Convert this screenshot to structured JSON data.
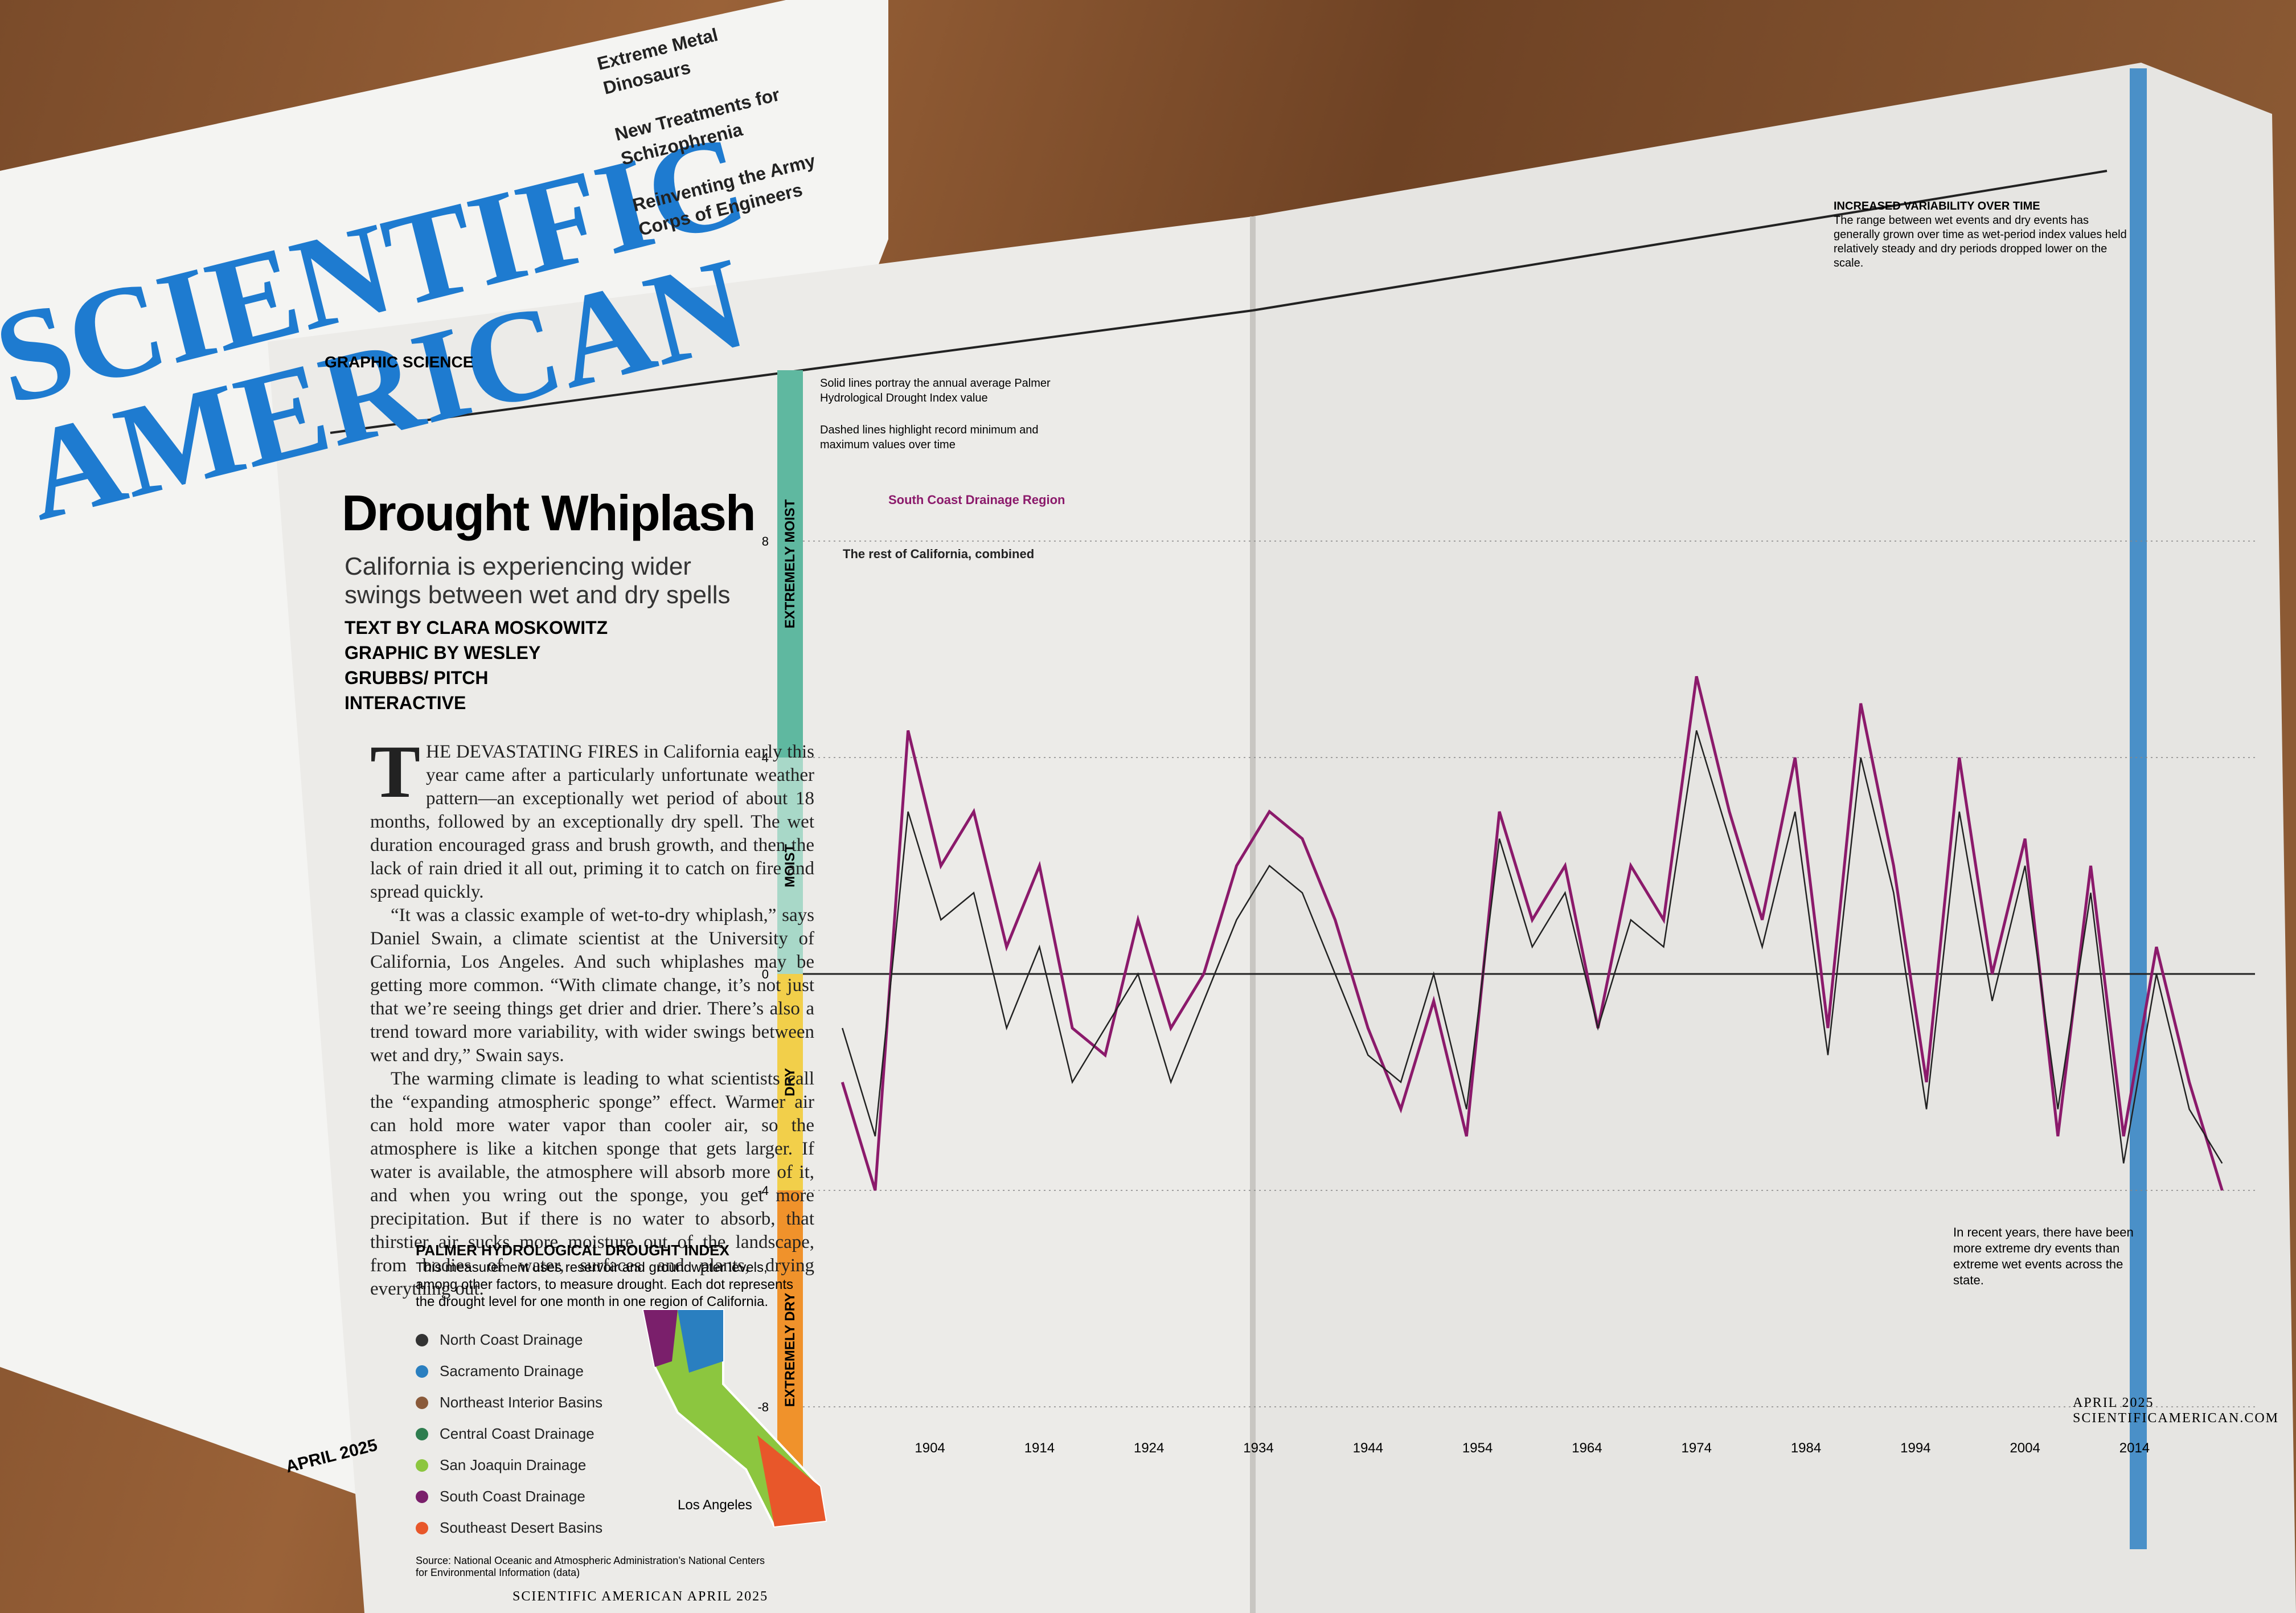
{
  "cover": {
    "masthead": [
      "SCIENTIFIC",
      "AMERICAN"
    ],
    "coverlines": [
      "Extreme Metal Dinosaurs",
      "New Treatments for Schizophrenia",
      "Reinventing the Army Corps of Engineers"
    ],
    "dateline": "APRIL 2025"
  },
  "article": {
    "section": "GRAPHIC SCIENCE",
    "title": "Drought Whiplash",
    "dek": "California is experiencing wider swings between wet and dry spells",
    "byline": [
      "TEXT BY CLARA MOSKOWITZ",
      "GRAPHIC BY WESLEY GRUBBS/ PITCH INTERACTIVE"
    ],
    "body": [
      "THE DEVASTATING FIRES in California early this year came after a particularly unfortunate weather pattern—an exceptionally wet period of about 18 months, followed by an exceptionally dry spell. The wet duration encouraged grass and brush growth, and then the lack of rain dried it all out, priming it to catch on fire and spread quickly.",
      "“It was a classic example of wet-to-dry whiplash,” says Daniel Swain, a climate scientist at the University of California, Los Angeles. And such whiplashes may be getting more common. “With climate change, it’s not just that we’re seeing things get drier and drier. There’s also a trend toward more variability, with wider swings between wet and dry,” Swain says.",
      "The warming climate is leading to what scientists call the “expanding atmospheric sponge” effect. Warmer air can hold more water vapor than cooler air, so the atmosphere is like a kitchen sponge that gets larger. If water is available, the atmosphere will absorb more of it, and when you wring out the sponge, you get more precipitation. But if there is no water to absorb, that thirstier air sucks more moisture out of the landscape, from bodies of water, surfaces and plants, drying everything out."
    ]
  },
  "legend": {
    "title": "PALMER HYDROLOGICAL DROUGHT INDEX",
    "description": "This measurement uses reservoir and groundwater levels, among other factors, to measure drought. Each dot represents the drought level for one month in one region of California.",
    "items": [
      {
        "name": "North Coast Drainage",
        "color": "#333333"
      },
      {
        "name": "Sacramento Drainage",
        "color": "#2a7fc0"
      },
      {
        "name": "Northeast Interior Basins",
        "color": "#8a5a3a"
      },
      {
        "name": "Central Coast Drainage",
        "color": "#2e7d4f"
      },
      {
        "name": "San Joaquin Drainage",
        "color": "#8cc63f"
      },
      {
        "name": "South Coast Drainage",
        "color": "#7a1f6b"
      },
      {
        "name": "Southeast Desert Basins",
        "color": "#e8572a"
      }
    ],
    "map_label": "Los Angeles",
    "source": "Source: National Oceanic and Atmospheric Administration’s National Centers for Environmental Information (data)"
  },
  "graphic": {
    "notes": [
      "Solid lines portray the annual average Palmer Hydrological Drought Index value",
      "Dashed lines highlight record minimum and maximum values over time"
    ],
    "zones": [
      "EXTREMELY MOIST",
      "MOIST",
      "DRY",
      "EXTREMELY DRY"
    ],
    "xlim": [
      1895,
      2025
    ],
    "ylim": [
      -8,
      8
    ],
    "yticks": [
      8,
      4,
      0,
      -4,
      -8
    ],
    "years": [
      1904,
      1914,
      1924,
      1934,
      1944,
      1954,
      1964,
      1974,
      1984,
      1994,
      2004,
      2014
    ],
    "x": [
      1896,
      1899,
      1902,
      1905,
      1908,
      1911,
      1914,
      1917,
      1920,
      1923,
      1926,
      1929,
      1932,
      1935,
      1938,
      1941,
      1944,
      1947,
      1950,
      1953,
      1956,
      1959,
      1962,
      1965,
      1968,
      1971,
      1974,
      1977,
      1980,
      1983,
      1986,
      1989,
      1992,
      1995,
      1998,
      2001,
      2004,
      2007,
      2010,
      2013,
      2016,
      2019,
      2022
    ],
    "series": [
      {
        "name": "South Coast Drainage Region",
        "color": "#8b1a6b",
        "values": [
          -2,
          -4,
          4.5,
          2,
          3,
          0.5,
          2,
          -1,
          -1.5,
          1,
          -1,
          0,
          2,
          3,
          2.5,
          1,
          -1,
          -2.5,
          -0.5,
          -3,
          3,
          1,
          2,
          -1,
          2,
          1,
          5.5,
          3,
          1,
          4,
          -1,
          5,
          2,
          -2,
          4,
          0,
          2.5,
          -3,
          2,
          -3,
          0.5,
          -2,
          -4
        ]
      },
      {
        "name": "The rest of California, combined",
        "color": "#222222",
        "values": [
          -1,
          -3,
          3,
          1,
          1.5,
          -1,
          0.5,
          -2,
          -1,
          0,
          -2,
          -0.5,
          1,
          2,
          1.5,
          0,
          -1.5,
          -2,
          0,
          -2.5,
          2.5,
          0.5,
          1.5,
          -1,
          1,
          0.5,
          4.5,
          2.5,
          0.5,
          3,
          -1.5,
          4,
          1.5,
          -2.5,
          3,
          -0.5,
          2,
          -2.5,
          1.5,
          -3.5,
          0,
          -2.5,
          -3.5
        ]
      }
    ],
    "variability": {
      "title": "INCREASED VARIABILITY OVER TIME",
      "text": "The range between wet events and dry events has generally grown over time as wet-period index values held relatively steady and dry periods dropped lower on the scale."
    },
    "recent_note": "In recent years, there have been more extreme dry events than extreme wet events across the state."
  },
  "footer": {
    "left": "SCIENTIFIC AMERICAN  APRIL 2025",
    "right": "APRIL 2025  SCIENTIFICAMERICAN.COM"
  }
}
